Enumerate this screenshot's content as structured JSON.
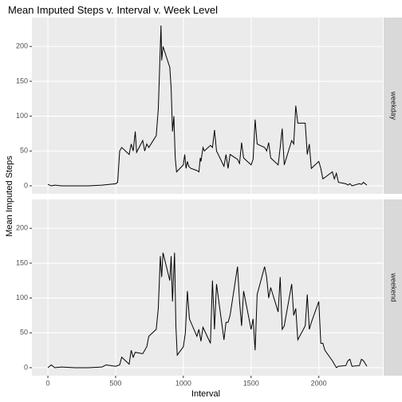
{
  "chart_data": [
    {
      "type": "line",
      "title": "Mean Imputed Steps v. Interval v. Week Level",
      "x_label": "Interval",
      "y_label": "Mean Imputed Steps",
      "facet": "weekday",
      "color": "#000000",
      "grid": true,
      "xlim": [
        -118,
        2473
      ],
      "xticks": [
        0,
        500,
        1000,
        1500,
        2000
      ],
      "ylim": [
        -11.5,
        241.5
      ],
      "yticks": [
        0,
        50,
        100,
        150,
        200
      ],
      "x": [
        0,
        25,
        50,
        100,
        200,
        300,
        400,
        500,
        515,
        530,
        545,
        600,
        615,
        630,
        645,
        655,
        700,
        715,
        730,
        745,
        800,
        815,
        830,
        835,
        840,
        850,
        900,
        910,
        920,
        930,
        940,
        950,
        1000,
        1010,
        1020,
        1030,
        1040,
        1055,
        1100,
        1115,
        1125,
        1130,
        1145,
        1155,
        1200,
        1215,
        1230,
        1245,
        1300,
        1315,
        1330,
        1345,
        1400,
        1415,
        1430,
        1445,
        1500,
        1515,
        1530,
        1545,
        1600,
        1615,
        1630,
        1645,
        1700,
        1715,
        1730,
        1745,
        1800,
        1815,
        1830,
        1845,
        1900,
        1915,
        1930,
        1945,
        2000,
        2015,
        2030,
        2045,
        2100,
        2115,
        2130,
        2145,
        2200,
        2215,
        2230,
        2245,
        2300,
        2315,
        2330,
        2355
      ],
      "values": [
        2,
        0,
        1,
        0,
        0,
        0,
        1,
        3,
        5,
        50,
        55,
        45,
        60,
        50,
        78,
        48,
        65,
        50,
        60,
        55,
        72,
        110,
        200,
        230,
        180,
        200,
        170,
        140,
        78,
        100,
        40,
        20,
        30,
        45,
        25,
        35,
        28,
        25,
        22,
        20,
        40,
        35,
        55,
        50,
        58,
        55,
        80,
        50,
        28,
        45,
        25,
        45,
        38,
        32,
        62,
        40,
        30,
        38,
        95,
        60,
        55,
        50,
        62,
        40,
        30,
        55,
        82,
        30,
        65,
        60,
        115,
        90,
        90,
        45,
        60,
        25,
        35,
        25,
        10,
        12,
        20,
        10,
        18,
        5,
        3,
        1,
        3,
        0,
        3,
        2,
        5,
        1
      ]
    },
    {
      "type": "line",
      "facet": "weekend",
      "color": "#000000",
      "grid": true,
      "xlim": [
        -118,
        2473
      ],
      "xticks": [
        0,
        500,
        1000,
        1500,
        2000
      ],
      "ylim": [
        -11.5,
        241.5
      ],
      "yticks": [
        0,
        50,
        100,
        150,
        200
      ],
      "x": [
        0,
        25,
        50,
        100,
        200,
        300,
        400,
        430,
        500,
        530,
        545,
        600,
        615,
        630,
        645,
        700,
        715,
        730,
        745,
        800,
        815,
        830,
        840,
        850,
        900,
        910,
        920,
        935,
        945,
        955,
        1000,
        1015,
        1030,
        1045,
        1100,
        1115,
        1130,
        1145,
        1200,
        1215,
        1230,
        1245,
        1300,
        1315,
        1330,
        1345,
        1400,
        1415,
        1430,
        1445,
        1500,
        1515,
        1530,
        1545,
        1600,
        1615,
        1630,
        1645,
        1700,
        1715,
        1730,
        1745,
        1800,
        1815,
        1830,
        1845,
        1900,
        1915,
        1930,
        1945,
        2000,
        2015,
        2030,
        2045,
        2100,
        2115,
        2130,
        2145,
        2200,
        2215,
        2230,
        2245,
        2300,
        2315,
        2330,
        2355
      ],
      "values": [
        0,
        4,
        0,
        1,
        0,
        0,
        1,
        4,
        2,
        4,
        15,
        5,
        25,
        15,
        22,
        20,
        25,
        30,
        45,
        55,
        85,
        160,
        130,
        165,
        125,
        160,
        95,
        165,
        60,
        18,
        30,
        50,
        110,
        70,
        45,
        55,
        38,
        58,
        35,
        125,
        55,
        120,
        40,
        65,
        65,
        75,
        145,
        95,
        60,
        110,
        55,
        70,
        25,
        105,
        145,
        130,
        100,
        115,
        80,
        130,
        55,
        60,
        120,
        75,
        85,
        40,
        60,
        105,
        55,
        65,
        95,
        35,
        35,
        25,
        10,
        5,
        0,
        2,
        3,
        10,
        12,
        2,
        3,
        12,
        10,
        2
      ]
    }
  ]
}
